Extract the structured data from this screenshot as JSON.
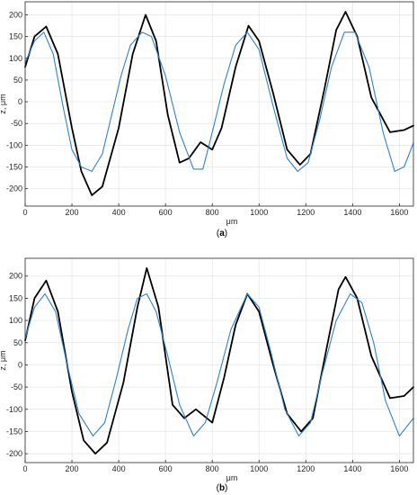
{
  "figure": {
    "colors": {
      "measured": "#000000",
      "fitted": "#2f83c8",
      "grid": "#e4e4e4",
      "axis": "#262626"
    }
  },
  "chart_data": [
    {
      "type": "line",
      "caption": {
        "open": "(",
        "letter": "a",
        "close": ")"
      },
      "xlabel": "μm",
      "ylabel": "z, μm",
      "xlim": [
        0,
        1660
      ],
      "ylim": [
        -240,
        230
      ],
      "xticks": [
        0,
        200,
        400,
        600,
        800,
        1000,
        1200,
        1400,
        1600
      ],
      "yticks": [
        -200,
        -150,
        -100,
        -50,
        0,
        50,
        100,
        150,
        200
      ],
      "xtick_labels": [
        "0",
        "200",
        "400",
        "600",
        "800",
        "1000",
        "1200",
        "1400",
        "1600"
      ],
      "ytick_labels": [
        "-200",
        "-150",
        "-100",
        "-50",
        "0",
        "50",
        "100",
        "150",
        "200"
      ],
      "grid": true,
      "series": [
        {
          "color": "#000000",
          "x": [
            0,
            40,
            90,
            140,
            200,
            240,
            285,
            330,
            400,
            460,
            515,
            560,
            610,
            660,
            700,
            750,
            800,
            840,
            900,
            955,
            1000,
            1060,
            1120,
            1175,
            1220,
            1280,
            1330,
            1370,
            1420,
            1480,
            1560,
            1620,
            1660
          ],
          "y": [
            80,
            150,
            173,
            110,
            -60,
            -160,
            -215,
            -195,
            -60,
            110,
            200,
            140,
            -30,
            -140,
            -130,
            -93,
            -110,
            -60,
            80,
            175,
            140,
            20,
            -110,
            -145,
            -120,
            30,
            165,
            207,
            150,
            10,
            -70,
            -65,
            -55
          ]
        },
        {
          "color": "#2f83c8",
          "x": [
            0,
            40,
            80,
            120,
            160,
            200,
            240,
            285,
            330,
            370,
            410,
            450,
            500,
            540,
            600,
            660,
            720,
            760,
            800,
            850,
            900,
            950,
            1000,
            1060,
            1120,
            1165,
            1210,
            1260,
            1310,
            1365,
            1410,
            1470,
            1530,
            1580,
            1620,
            1660
          ],
          "y": [
            90,
            140,
            160,
            110,
            -5,
            -110,
            -150,
            -160,
            -120,
            -30,
            60,
            130,
            160,
            150,
            60,
            -70,
            -155,
            -155,
            -70,
            40,
            130,
            160,
            120,
            -10,
            -130,
            -160,
            -140,
            -40,
            80,
            160,
            160,
            80,
            -70,
            -160,
            -150,
            -95
          ]
        }
      ]
    },
    {
      "type": "line",
      "caption": {
        "open": "(",
        "letter": "b",
        "close": ")"
      },
      "xlabel": "μm",
      "ylabel": "z, μm",
      "xlim": [
        0,
        1660
      ],
      "ylim": [
        -220,
        240
      ],
      "xticks": [
        0,
        200,
        400,
        600,
        800,
        1000,
        1200,
        1400,
        1600
      ],
      "yticks": [
        -200,
        -150,
        -100,
        -50,
        0,
        50,
        100,
        150,
        200
      ],
      "xtick_labels": [
        "0",
        "200",
        "400",
        "600",
        "800",
        "1000",
        "1200",
        "1400",
        "1600"
      ],
      "ytick_labels": [
        "-200",
        "-150",
        "-100",
        "-50",
        "0",
        "50",
        "100",
        "150",
        "200"
      ],
      "grid": true,
      "series": [
        {
          "color": "#000000",
          "x": [
            0,
            40,
            90,
            140,
            200,
            250,
            300,
            350,
            420,
            480,
            520,
            570,
            630,
            680,
            730,
            800,
            850,
            900,
            950,
            1000,
            1060,
            1120,
            1180,
            1230,
            1290,
            1340,
            1370,
            1420,
            1480,
            1560,
            1620,
            1660
          ],
          "y": [
            55,
            150,
            190,
            120,
            -60,
            -170,
            -200,
            -175,
            -40,
            130,
            218,
            130,
            -90,
            -120,
            -100,
            -130,
            -30,
            90,
            160,
            120,
            0,
            -110,
            -150,
            -120,
            40,
            170,
            198,
            150,
            20,
            -75,
            -70,
            -50
          ]
        },
        {
          "color": "#2f83c8",
          "x": [
            0,
            40,
            85,
            130,
            180,
            230,
            290,
            340,
            390,
            440,
            480,
            520,
            560,
            610,
            660,
            720,
            770,
            820,
            880,
            950,
            1000,
            1050,
            1110,
            1170,
            1220,
            1270,
            1330,
            1390,
            1440,
            1490,
            1540,
            1600,
            1660
          ],
          "y": [
            60,
            130,
            160,
            120,
            0,
            -110,
            -160,
            -130,
            -30,
            80,
            150,
            160,
            120,
            20,
            -90,
            -160,
            -130,
            -40,
            80,
            160,
            130,
            30,
            -100,
            -160,
            -130,
            -20,
            100,
            160,
            140,
            50,
            -80,
            -160,
            -120
          ]
        }
      ]
    }
  ]
}
